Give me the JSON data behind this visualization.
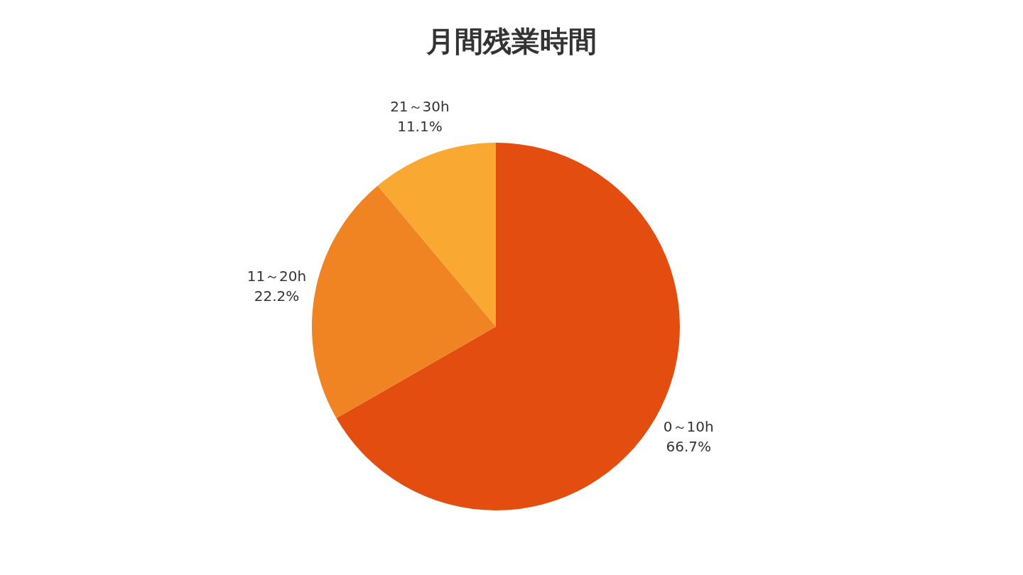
{
  "chart_data": {
    "type": "pie",
    "title": "月間残業時間",
    "categories": [
      "0～10h",
      "11～20h",
      "21～30h"
    ],
    "values": [
      66.7,
      22.2,
      11.1
    ],
    "colors": [
      "#e34e10",
      "#f08322",
      "#f9a832"
    ],
    "value_labels": [
      "66.7%",
      "22.2%",
      "11.1%"
    ]
  }
}
